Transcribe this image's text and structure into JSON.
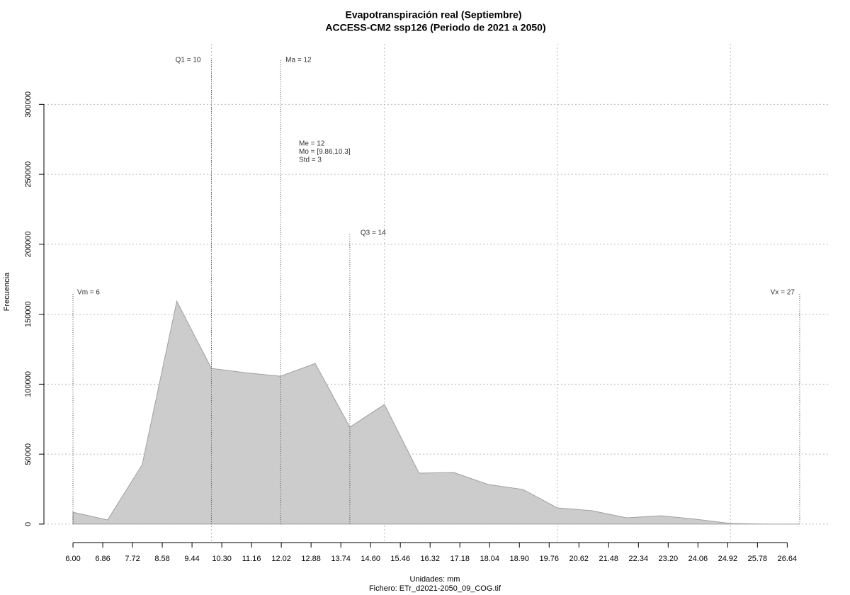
{
  "chart_data": {
    "type": "area",
    "title": "Evapotranspiración real (Septiembre)",
    "subtitle": "ACCESS-CM2 ssp126 (Periodo de 2021 a 2050)",
    "xlabel": "Unidades: mm",
    "caption": "Fichero: ETr_d2021-2050_09_COG.tif",
    "ylabel": "Frecuencia",
    "x": [
      6,
      7,
      8,
      9,
      10,
      11,
      12,
      13,
      14,
      15,
      16,
      17,
      18,
      19,
      20,
      21,
      22,
      23,
      24,
      25,
      26,
      27
    ],
    "values": [
      8500,
      3000,
      42500,
      159300,
      111300,
      108200,
      105700,
      114800,
      69300,
      85500,
      36400,
      36900,
      28300,
      24800,
      11600,
      9600,
      4500,
      6000,
      3500,
      500,
      0,
      0
    ],
    "color": "#cccccc",
    "xlim": [
      5.16,
      27.84
    ],
    "ylim": [
      -13200,
      343200
    ],
    "xticks": [
      {
        "value": 6,
        "label": "6.00"
      },
      6.86,
      7.72,
      8.58,
      9.44,
      {
        "value": 10.3,
        "label": "10.30"
      },
      11.16,
      12.02,
      12.88,
      13.74,
      {
        "value": 14.6,
        "label": "14.60"
      },
      15.46,
      16.32,
      17.18,
      18.04,
      {
        "value": 18.9,
        "label": "18.90"
      },
      19.76,
      20.62,
      21.48,
      22.34,
      {
        "value": 23.2,
        "label": "23.20"
      },
      24.06,
      24.92,
      25.78,
      26.64
    ],
    "yticks": [
      0,
      50000,
      100000,
      150000,
      200000,
      250000,
      300000
    ],
    "xgrid": [
      10,
      15,
      20,
      25
    ],
    "grid": true,
    "stats": [
      {
        "label": "Vm = 6",
        "value": 6
      },
      {
        "label": "Q1 = 10",
        "value": 10
      },
      {
        "label": "Ma = 12",
        "value": 12
      },
      {
        "label": "Q3 = 14",
        "value": 14
      },
      {
        "label": "Vx = 27",
        "value": 27
      }
    ],
    "notes": [
      "Me = 12",
      "Mo = [9.86,10.3]",
      "Std = 3"
    ]
  }
}
